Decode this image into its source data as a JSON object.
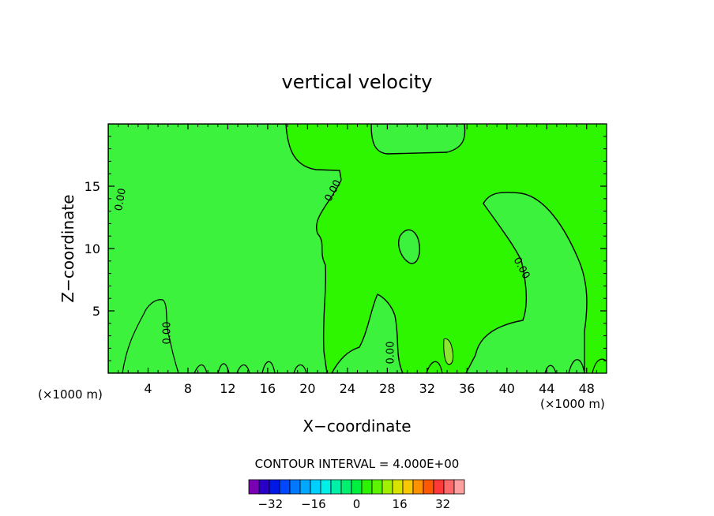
{
  "chart_data": {
    "type": "heatmap",
    "title": "vertical velocity",
    "xlabel": "X−coordinate",
    "ylabel": "Z−coordinate",
    "x_unit_left": "(×1000 m)",
    "x_unit_right": "(×1000 m)",
    "xlim": [
      0,
      50
    ],
    "ylim": [
      0,
      20
    ],
    "x_ticks": [
      4,
      8,
      12,
      16,
      20,
      24,
      28,
      32,
      36,
      40,
      44,
      48
    ],
    "y_ticks": [
      5,
      10,
      15
    ],
    "x_tick_labels": [
      "4",
      "8",
      "12",
      "16",
      "20",
      "24",
      "28",
      "32",
      "36",
      "40",
      "44",
      "48"
    ],
    "y_tick_labels": [
      "5",
      "10",
      "15"
    ],
    "contour_labels": [
      "0.00",
      "0.00",
      "0.00",
      "0.00",
      "0.00"
    ],
    "contour_interval_text": "CONTOUR INTERVAL = 4.000E+00",
    "colorbar": {
      "tick_labels": [
        "−32",
        "−16",
        "0",
        "16",
        "32"
      ],
      "tick_values": [
        -32,
        -16,
        0,
        16,
        32
      ],
      "levels": [
        -40,
        -36,
        -32,
        -28,
        -24,
        -20,
        -16,
        -12,
        -8,
        -4,
        0,
        4,
        8,
        12,
        16,
        20,
        24,
        28,
        32,
        36,
        40
      ],
      "colors": [
        "#7a00b4",
        "#2a00c8",
        "#0018e6",
        "#0048ff",
        "#0078ff",
        "#00a8ff",
        "#00d0ff",
        "#00f0e8",
        "#00f0a8",
        "#00f070",
        "#00f040",
        "#2cf400",
        "#5cf400",
        "#a0f000",
        "#d8e400",
        "#f8c800",
        "#ff9000",
        "#ff5800",
        "#ff3838",
        "#ff6868",
        "#ffa0a0"
      ]
    },
    "fill_negative": "#3cf23c",
    "fill_positive": "#2ef600",
    "fill_positive_strong": "#8ae62e",
    "grid": false,
    "legend": "bottom"
  }
}
